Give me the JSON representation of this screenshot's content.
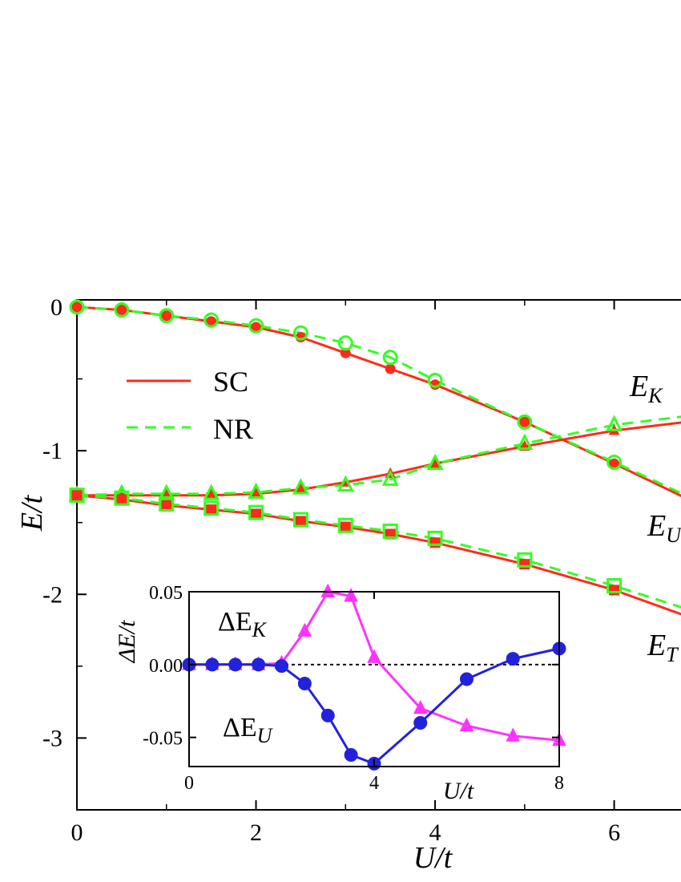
{
  "chart_data": [
    {
      "type": "line",
      "xlabel": "U/t",
      "ylabel": "E/t",
      "xlim": [
        0,
        6.8
      ],
      "ylim": [
        -3.5,
        0.05
      ],
      "xticks": [
        "0",
        "2",
        "4",
        "6"
      ],
      "yticks": [
        "0",
        "-1",
        "-2",
        "-3"
      ],
      "legend": {
        "placement": "top-left",
        "entries": [
          {
            "label": "SC",
            "style": "solid",
            "color": "#ff2a1a"
          },
          {
            "label": "NR",
            "style": "dashed",
            "color": "#33ff22"
          }
        ]
      },
      "curve_labels": [
        {
          "text": "E",
          "sub": "K",
          "series": "E_K"
        },
        {
          "text": "E",
          "sub": "U",
          "series": "E_U"
        },
        {
          "text": "E",
          "sub": "T",
          "series": "E_T"
        }
      ],
      "series": [
        {
          "key": "E_U",
          "marker": "circle",
          "sc_x": [
            0,
            0.5,
            1,
            1.5,
            2,
            2.5,
            3,
            3.5,
            4,
            5,
            6,
            6.8
          ],
          "sc_y": [
            0,
            -0.02,
            -0.06,
            -0.1,
            -0.14,
            -0.21,
            -0.32,
            -0.43,
            -0.54,
            -0.8,
            -1.09,
            -1.33
          ],
          "nr_x": [
            0,
            0.5,
            1,
            1.5,
            2,
            2.5,
            3,
            3.5,
            4,
            5,
            6,
            6.8
          ],
          "nr_y": [
            0,
            -0.02,
            -0.06,
            -0.09,
            -0.13,
            -0.18,
            -0.25,
            -0.35,
            -0.51,
            -0.8,
            -1.08,
            -1.31
          ]
        },
        {
          "key": "E_K",
          "marker": "triangle",
          "sc_x": [
            0,
            0.5,
            1,
            1.5,
            2,
            2.5,
            3,
            3.5,
            4,
            5,
            6,
            6.8
          ],
          "sc_y": [
            -1.31,
            -1.31,
            -1.31,
            -1.31,
            -1.3,
            -1.27,
            -1.22,
            -1.16,
            -1.09,
            -0.97,
            -0.86,
            -0.8
          ],
          "nr_x": [
            0,
            0.5,
            1,
            1.5,
            2,
            2.5,
            3,
            3.5,
            4,
            5,
            6,
            6.8
          ],
          "nr_y": [
            -1.31,
            -1.3,
            -1.3,
            -1.3,
            -1.29,
            -1.26,
            -1.24,
            -1.2,
            -1.09,
            -0.95,
            -0.82,
            -0.76
          ]
        },
        {
          "key": "E_T",
          "marker": "square",
          "sc_x": [
            0,
            0.5,
            1,
            1.5,
            2,
            2.5,
            3,
            3.5,
            4,
            5,
            6,
            6.8
          ],
          "sc_y": [
            -1.31,
            -1.34,
            -1.38,
            -1.41,
            -1.44,
            -1.49,
            -1.53,
            -1.58,
            -1.64,
            -1.79,
            -1.97,
            -2.15
          ],
          "nr_x": [
            0,
            0.5,
            1,
            1.5,
            2,
            2.5,
            3,
            3.5,
            4,
            5,
            6,
            6.8
          ],
          "nr_y": [
            -1.31,
            -1.33,
            -1.37,
            -1.4,
            -1.43,
            -1.48,
            -1.52,
            -1.56,
            -1.61,
            -1.76,
            -1.94,
            -2.1
          ]
        }
      ]
    },
    {
      "type": "line",
      "xlabel": "U/t",
      "ylabel": "ΔE/t",
      "xlim": [
        0,
        8
      ],
      "ylim": [
        -0.07,
        0.05
      ],
      "xticks": [
        "0",
        "4",
        "8"
      ],
      "yticks": [
        "0.05",
        "0.00",
        "-0.05"
      ],
      "reference_line": {
        "y": 0,
        "style": "dotted"
      },
      "series": [
        {
          "name": "ΔE_K",
          "marker": "triangle",
          "color": "#ff33ff",
          "x": [
            0,
            0.5,
            1,
            1.5,
            2,
            2.5,
            3,
            3.5,
            4,
            5,
            6,
            7,
            8
          ],
          "y": [
            0,
            0,
            0,
            0,
            0.001,
            0.023,
            0.05,
            0.047,
            0.005,
            -0.03,
            -0.042,
            -0.049,
            -0.052
          ]
        },
        {
          "name": "ΔE_U",
          "marker": "circle",
          "color": "#2222dd",
          "x": [
            0,
            0.5,
            1,
            1.5,
            2,
            2.5,
            3,
            3.5,
            4,
            5,
            6,
            7,
            8
          ],
          "y": [
            0,
            0,
            0,
            0,
            -0.001,
            -0.013,
            -0.035,
            -0.062,
            -0.068,
            -0.04,
            -0.01,
            0.004,
            0.011
          ]
        }
      ],
      "series_labels": [
        {
          "text": "ΔE",
          "sub": "K",
          "series": "ΔE_K"
        },
        {
          "text": "ΔE",
          "sub": "U",
          "series": "ΔE_U"
        }
      ]
    }
  ],
  "colors": {
    "sc": "#ff2a1a",
    "nr": "#33ff22",
    "dEK": "#ff33ff",
    "dEU": "#2222dd"
  }
}
